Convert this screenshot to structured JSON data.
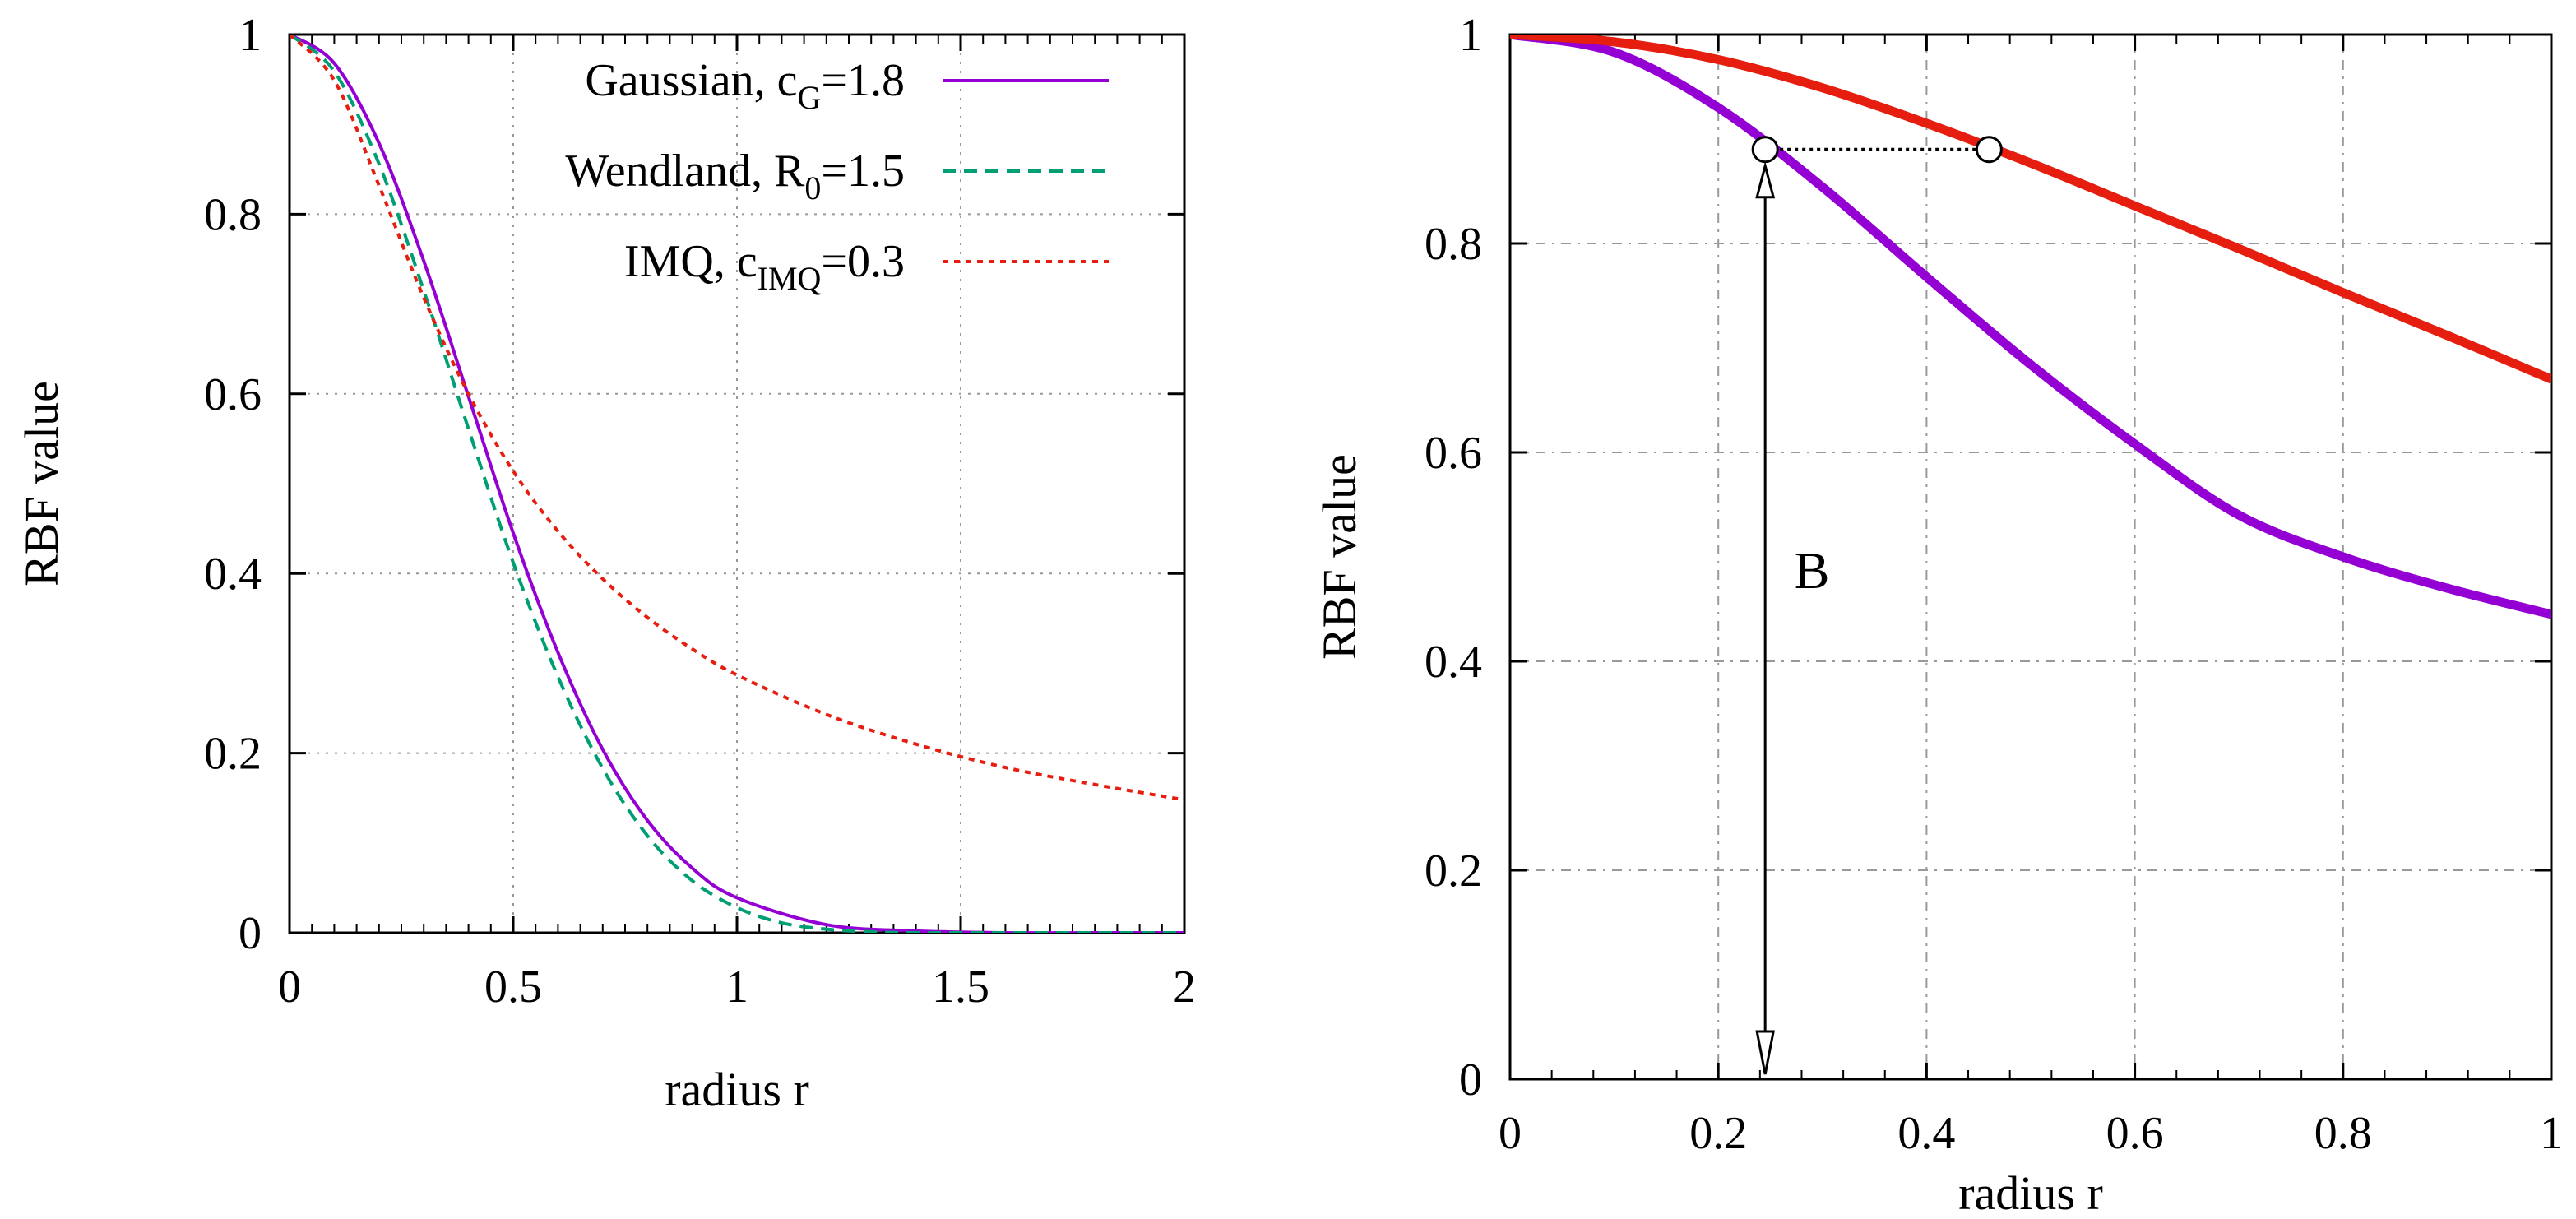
{
  "chart_data": [
    {
      "type": "line",
      "xlabel": "radius r",
      "ylabel": "RBF value",
      "xlim": [
        0,
        2
      ],
      "ylim": [
        0,
        1
      ],
      "xticks": [
        "0",
        "0.5",
        "1",
        "1.5",
        "2"
      ],
      "yticks": [
        "0",
        "0.2",
        "0.4",
        "0.6",
        "0.8",
        "1"
      ],
      "grid": true,
      "legend_position": "top-right",
      "series": [
        {
          "name": "Gaussian",
          "param_symbol": "c",
          "param_sub": "G",
          "param_value": "=1.8",
          "color": "#9400d3",
          "style": "solid",
          "x": [
            0,
            0.1,
            0.2,
            0.3,
            0.4,
            0.5,
            0.6,
            0.7,
            0.8,
            0.9,
            1.0,
            1.2,
            1.4,
            1.6,
            1.8,
            2.0
          ],
          "y": [
            1.0,
            0.968,
            0.879,
            0.748,
            0.597,
            0.445,
            0.312,
            0.204,
            0.125,
            0.072,
            0.039,
            0.009,
            0.002,
            0.0,
            0.0,
            0.0
          ]
        },
        {
          "name": "Wendland",
          "param_symbol": "R",
          "param_sub": "0",
          "param_value": "=1.5",
          "color": "#009e73",
          "style": "dashed",
          "x": [
            0,
            0.1,
            0.2,
            0.3,
            0.4,
            0.5,
            0.6,
            0.7,
            0.8,
            0.9,
            1.0,
            1.1,
            1.2,
            1.3,
            1.4,
            1.5,
            1.6,
            1.8,
            2.0
          ],
          "y": [
            1.0,
            0.959,
            0.856,
            0.715,
            0.561,
            0.412,
            0.285,
            0.183,
            0.108,
            0.058,
            0.028,
            0.011,
            0.004,
            0.001,
            0.0,
            0.0,
            0.0,
            0.0,
            0.0
          ]
        },
        {
          "name": "IMQ",
          "param_symbol": "c",
          "param_sub": "IMQ",
          "param_value": "=0.3",
          "color": "#e51e10",
          "style": "dotted",
          "x": [
            0,
            0.1,
            0.2,
            0.3,
            0.4,
            0.5,
            0.6,
            0.7,
            0.8,
            0.9,
            1.0,
            1.2,
            1.4,
            1.6,
            1.8,
            2.0
          ],
          "y": [
            1.0,
            0.949,
            0.832,
            0.707,
            0.6,
            0.514,
            0.447,
            0.394,
            0.351,
            0.316,
            0.287,
            0.243,
            0.21,
            0.184,
            0.165,
            0.148
          ]
        }
      ]
    },
    {
      "type": "line",
      "xlabel": "radius r",
      "ylabel": "RBF value",
      "xlim": [
        0,
        1
      ],
      "ylim": [
        0,
        1
      ],
      "xticks": [
        "0",
        "0.2",
        "0.4",
        "0.6",
        "0.8",
        "1"
      ],
      "yticks": [
        "0",
        "0.2",
        "0.4",
        "0.6",
        "0.8",
        "1"
      ],
      "grid": true,
      "series": [
        {
          "name": "purple curve",
          "color": "#9400d3",
          "style": "thick",
          "x": [
            0,
            0.1,
            0.2,
            0.3,
            0.4,
            0.5,
            0.6,
            0.7,
            0.8,
            0.9,
            1.0
          ],
          "y": [
            1.0,
            0.983,
            0.93,
            0.854,
            0.768,
            0.684,
            0.608,
            0.54,
            0.5,
            0.47,
            0.445
          ]
        },
        {
          "name": "red curve",
          "color": "#e51e10",
          "style": "thick",
          "x": [
            0,
            0.1,
            0.2,
            0.3,
            0.4,
            0.5,
            0.6,
            0.7,
            0.8,
            0.9,
            1.0
          ],
          "y": [
            1.0,
            0.993,
            0.976,
            0.949,
            0.915,
            0.877,
            0.836,
            0.795,
            0.753,
            0.712,
            0.67
          ]
        }
      ],
      "annotations": {
        "label": "B",
        "label_at": [
          0.29,
          0.47
        ],
        "arrow_x": 0.245,
        "arrow_from_y": 0.0,
        "arrow_to_y": 0.89,
        "circles": [
          [
            0.245,
            0.89
          ],
          [
            0.46,
            0.89
          ]
        ],
        "dotted_line": [
          [
            0.245,
            0.89
          ],
          [
            0.46,
            0.89
          ]
        ]
      }
    }
  ]
}
